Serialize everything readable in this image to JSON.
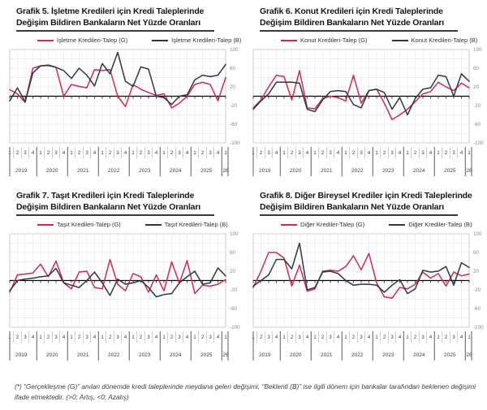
{
  "colors": {
    "actual": "#d2294d",
    "expected": "#2b3947",
    "grid": "#e1e1e1",
    "border": "#c4c4c4",
    "zero_axis": "#000000",
    "y_tick_label": "#8a8a8a",
    "x_tick_label": "#3c3c3c",
    "separator_minor": "#999999",
    "separator_major": "#4a4a4a"
  },
  "axis": {
    "y_ticks": [
      100,
      60,
      20,
      -20,
      -60,
      -100
    ],
    "ylim": [
      -100,
      100
    ],
    "quarters": [
      "1",
      "2",
      "3",
      "4",
      "1",
      "2",
      "3",
      "4",
      "1",
      "2",
      "3",
      "4",
      "1",
      "2",
      "3",
      "4",
      "1",
      "2",
      "3",
      "4",
      "1",
      "2",
      "3",
      "4",
      "1",
      "2",
      "3",
      "4",
      "1"
    ],
    "years": [
      {
        "label": "2019",
        "span": 4
      },
      {
        "label": "2020",
        "span": 4
      },
      {
        "label": "2021",
        "span": 4
      },
      {
        "label": "2022",
        "span": 4
      },
      {
        "label": "2023",
        "span": 4
      },
      {
        "label": "2024",
        "span": 4
      },
      {
        "label": "2025",
        "span": 4
      },
      {
        "label": "26",
        "span": 1
      }
    ]
  },
  "chart_data": [
    {
      "type": "line",
      "title_line1": "Grafik 5. İşletme Kredileri için Kredi Taleplerinde",
      "title_line2": "Değişim Bildiren Bankaların Net Yüzde Oranları",
      "x_range": "2019Q1-2026Q1 quarterly",
      "ylim": [
        -100,
        100
      ],
      "legend": [
        {
          "label": "İşletme Kredileri-Talep (G)",
          "color_key": "actual"
        },
        {
          "label": "İşletme Kredileri-Talep (B)",
          "color_key": "expected"
        }
      ],
      "series": [
        {
          "name": "İşletme Kredileri-Talep (G)",
          "color_key": "actual",
          "values": [
            14,
            5,
            -13,
            60,
            65,
            67,
            62,
            0,
            25,
            21,
            18,
            57,
            55,
            57,
            0,
            -22,
            25,
            15,
            8,
            2,
            5,
            -25,
            -15,
            0,
            25,
            30,
            25,
            -10,
            40
          ]
        },
        {
          "name": "İşletme Kredileri-Talep (B)",
          "color_key": "expected",
          "values": [
            -10,
            18,
            -12,
            50,
            65,
            66,
            62,
            55,
            38,
            60,
            45,
            22,
            70,
            48,
            94,
            32,
            21,
            63,
            58,
            0,
            -3,
            -18,
            0,
            3,
            35,
            45,
            42,
            45,
            68
          ]
        }
      ]
    },
    {
      "type": "line",
      "title_line1": "Grafik 6. Konut Kredileri için Kredi Taleplerinde",
      "title_line2": "Değişim Bildiren Bankaların Net Yüzde Oranları",
      "x_range": "2019Q1-2026Q1 quarterly",
      "ylim": [
        -100,
        100
      ],
      "legend": [
        {
          "label": "Konut Kredileri-Talep (G)",
          "color_key": "actual"
        },
        {
          "label": "Konut Kredileri-Talep (B)",
          "color_key": "expected"
        }
      ],
      "series": [
        {
          "name": "Konut Kredileri-Talep (G)",
          "color_key": "actual",
          "values": [
            -25,
            -8,
            20,
            45,
            42,
            -8,
            55,
            -25,
            -27,
            -5,
            0,
            -3,
            -10,
            45,
            -15,
            12,
            15,
            -15,
            -50,
            -40,
            -28,
            -12,
            5,
            10,
            30,
            20,
            12,
            28,
            18
          ]
        },
        {
          "name": "Konut Kredileri-Talep (B)",
          "color_key": "expected",
          "values": [
            -28,
            -10,
            5,
            30,
            30,
            30,
            28,
            -28,
            -33,
            -8,
            10,
            12,
            10,
            -18,
            -25,
            12,
            15,
            8,
            -28,
            -3,
            -40,
            -5,
            15,
            18,
            45,
            42,
            0,
            48,
            32
          ]
        }
      ]
    },
    {
      "type": "line",
      "title_line1": "Grafik 7. Taşıt Kredileri için Kredi Taleplerinde",
      "title_line2": "Değişim Bildiren Bankaların Net Yüzde Oranları",
      "x_range": "2019Q1-2026Q1 quarterly",
      "ylim": [
        -100,
        100
      ],
      "legend": [
        {
          "label": "Taşıt Kredileri-Talep (G)",
          "color_key": "actual"
        },
        {
          "label": "Taşıt Kredileri-Talep (B)",
          "color_key": "expected"
        }
      ],
      "series": [
        {
          "name": "Taşıt Kredileri-Talep (G)",
          "color_key": "actual",
          "values": [
            -25,
            12,
            14,
            16,
            35,
            8,
            42,
            -5,
            -18,
            18,
            20,
            -15,
            -18,
            45,
            -8,
            -22,
            15,
            8,
            -25,
            12,
            -22,
            40,
            -6,
            43,
            -28,
            -10,
            -12,
            -8,
            2
          ]
        },
        {
          "name": "Taşıt Kredileri-Talep (B)",
          "color_key": "expected",
          "values": [
            -22,
            0,
            3,
            5,
            8,
            10,
            26,
            -5,
            -10,
            -15,
            0,
            18,
            -5,
            -32,
            3,
            -8,
            -5,
            0,
            -15,
            -35,
            -30,
            -28,
            -5,
            8,
            20,
            -8,
            -5,
            27,
            10
          ]
        }
      ]
    },
    {
      "type": "line",
      "title_line1": "Grafik 8. Diğer Bireysel Krediler için Kredi Taleplerinde",
      "title_line2": "Değişim Bildiren Bankaların Net Yüzde Oranları",
      "x_range": "2019Q1-2026Q1 quarterly",
      "ylim": [
        -100,
        100
      ],
      "legend": [
        {
          "label": "Diğer Krediler-Talep (G)",
          "color_key": "actual"
        },
        {
          "label": "Diğer Krediler-Talep (B)",
          "color_key": "expected"
        }
      ],
      "series": [
        {
          "name": "Diğer Krediler-Talep (G)",
          "color_key": "actual",
          "values": [
            -15,
            20,
            60,
            60,
            48,
            -12,
            33,
            -23,
            -18,
            20,
            22,
            20,
            30,
            53,
            23,
            58,
            -5,
            -35,
            -38,
            -15,
            -18,
            -8,
            18,
            5,
            15,
            -12,
            18,
            10,
            14
          ]
        },
        {
          "name": "Diğer Krediler-Talep (B)",
          "color_key": "expected",
          "values": [
            -12,
            0,
            12,
            45,
            45,
            25,
            80,
            -20,
            -15,
            18,
            20,
            15,
            0,
            -10,
            -8,
            -8,
            -10,
            -25,
            -10,
            2,
            -28,
            -18,
            22,
            18,
            20,
            30,
            -10,
            38,
            28
          ]
        }
      ]
    }
  ],
  "page": {
    "footnote": "(*) “Gerçekleşme (G)” anılan dönemde kredi taleplerinde meydana gelen değişimi, “Beklenti (B)” ise ilgili dönem için bankalar tarafından beklenen değişimi ifade etmektedir. (>0; Artış, <0; Azalış)"
  }
}
